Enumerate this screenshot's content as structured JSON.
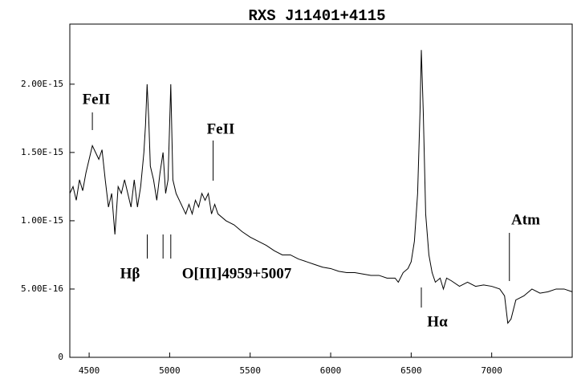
{
  "chart_data": {
    "type": "line",
    "title": "RXS  J11401+4115",
    "xlim": [
      4380,
      7500
    ],
    "xticks": [
      4500,
      5000,
      5500,
      6000,
      6500,
      7000
    ],
    "ylim": [
      0,
      2.44e-15
    ],
    "yticks": [
      0,
      {
        "value": 5e-16,
        "label": "5.00E-16"
      },
      {
        "value": 1e-15,
        "label": "1.00E-15"
      },
      {
        "value": 1.5e-15,
        "label": "1.50E-15"
      },
      {
        "value": 2e-15,
        "label": "2.00E-15"
      }
    ],
    "x": [
      4380,
      4400,
      4420,
      4440,
      4460,
      4480,
      4500,
      4520,
      4540,
      4560,
      4580,
      4600,
      4620,
      4640,
      4660,
      4680,
      4700,
      4720,
      4740,
      4760,
      4780,
      4800,
      4820,
      4840,
      4850,
      4860,
      4870,
      4880,
      4900,
      4920,
      4940,
      4959,
      4975,
      4990,
      5007,
      5020,
      5040,
      5060,
      5080,
      5100,
      5120,
      5140,
      5160,
      5180,
      5200,
      5220,
      5240,
      5260,
      5280,
      5300,
      5350,
      5400,
      5450,
      5500,
      5550,
      5600,
      5650,
      5700,
      5750,
      5800,
      5850,
      5900,
      5950,
      6000,
      6050,
      6100,
      6150,
      6200,
      6250,
      6300,
      6350,
      6400,
      6420,
      6450,
      6480,
      6500,
      6520,
      6540,
      6555,
      6563,
      6575,
      6590,
      6610,
      6630,
      6650,
      6680,
      6700,
      6720,
      6750,
      6800,
      6850,
      6900,
      6950,
      7000,
      7050,
      7080,
      7100,
      7120,
      7150,
      7200,
      7250,
      7300,
      7350,
      7400,
      7450,
      7500
    ],
    "series": [
      {
        "color": "#000000",
        "values": [
          1.2e-15,
          1.25e-15,
          1.15e-15,
          1.3e-15,
          1.22e-15,
          1.35e-15,
          1.45e-15,
          1.55e-15,
          1.5e-15,
          1.45e-15,
          1.52e-15,
          1.3e-15,
          1.1e-15,
          1.2e-15,
          9e-16,
          1.25e-15,
          1.2e-15,
          1.3e-15,
          1.2e-15,
          1.1e-15,
          1.3e-15,
          1.1e-15,
          1.25e-15,
          1.5e-15,
          1.7e-15,
          2e-15,
          1.75e-15,
          1.4e-15,
          1.3e-15,
          1.15e-15,
          1.35e-15,
          1.5e-15,
          1.2e-15,
          1.3e-15,
          2e-15,
          1.3e-15,
          1.2e-15,
          1.15e-15,
          1.1e-15,
          1.05e-15,
          1.12e-15,
          1.05e-15,
          1.15e-15,
          1.1e-15,
          1.2e-15,
          1.15e-15,
          1.2e-15,
          1.05e-15,
          1.12e-15,
          1.05e-15,
          1e-15,
          9.7e-16,
          9.2e-16,
          8.8e-16,
          8.5e-16,
          8.2e-16,
          7.8e-16,
          7.5e-16,
          7.5e-16,
          7.2e-16,
          7e-16,
          6.8e-16,
          6.6e-16,
          6.5e-16,
          6.3e-16,
          6.2e-16,
          6.2e-16,
          6.1e-16,
          6e-16,
          6e-16,
          5.8e-16,
          5.8e-16,
          5.5e-16,
          6.2e-16,
          6.5e-16,
          7e-16,
          8.5e-16,
          1.2e-15,
          1.8e-15,
          2.25e-15,
          1.8e-15,
          1.05e-15,
          7.5e-16,
          6.2e-16,
          5.5e-16,
          5.8e-16,
          5e-16,
          5.8e-16,
          5.6e-16,
          5.2e-16,
          5.5e-16,
          5.2e-16,
          5.3e-16,
          5.2e-16,
          5e-16,
          4.5e-16,
          2.5e-16,
          2.8e-16,
          4.2e-16,
          4.5e-16,
          5e-16,
          4.7e-16,
          4.8e-16,
          5e-16,
          5e-16,
          4.8e-16
        ]
      }
    ],
    "annotations": [
      {
        "text": "FeII",
        "x": [
          4520
        ]
      },
      {
        "text": "Hβ",
        "x": [
          4861
        ]
      },
      {
        "text": "O[III]4959+5007",
        "x": [
          4959,
          5007
        ]
      },
      {
        "text": "FeII",
        "x": [
          5270
        ]
      },
      {
        "text": "Hα",
        "x": [
          6563
        ]
      },
      {
        "text": "Atm",
        "x": [
          7110
        ]
      }
    ]
  }
}
